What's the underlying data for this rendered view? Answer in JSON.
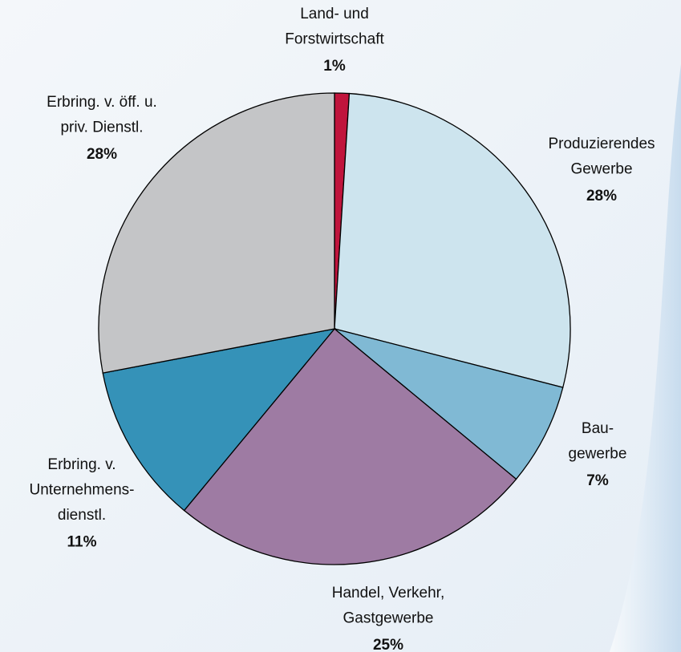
{
  "chart_data": {
    "type": "pie",
    "categories": [
      [
        "Land- und",
        "Forstwirtschaft"
      ],
      [
        "Produzierendes",
        "Gewerbe"
      ],
      [
        "Bau-",
        "gewerbe"
      ],
      [
        "Handel, Verkehr,",
        "Gastgewerbe"
      ],
      [
        "Erbring. v.",
        "Unternehmens-",
        "dienstl."
      ],
      [
        "Erbring. v. öff. u.",
        "priv. Dienstl."
      ]
    ],
    "values": [
      1,
      28,
      7,
      25,
      11,
      28
    ],
    "value_labels": [
      "1%",
      "28%",
      "7%",
      "25%",
      "11%",
      "28%"
    ],
    "colors": [
      "#c0143c",
      "#cde4ee",
      "#80b9d4",
      "#9e7ba3",
      "#3592b8",
      "#c4c5c7"
    ]
  }
}
